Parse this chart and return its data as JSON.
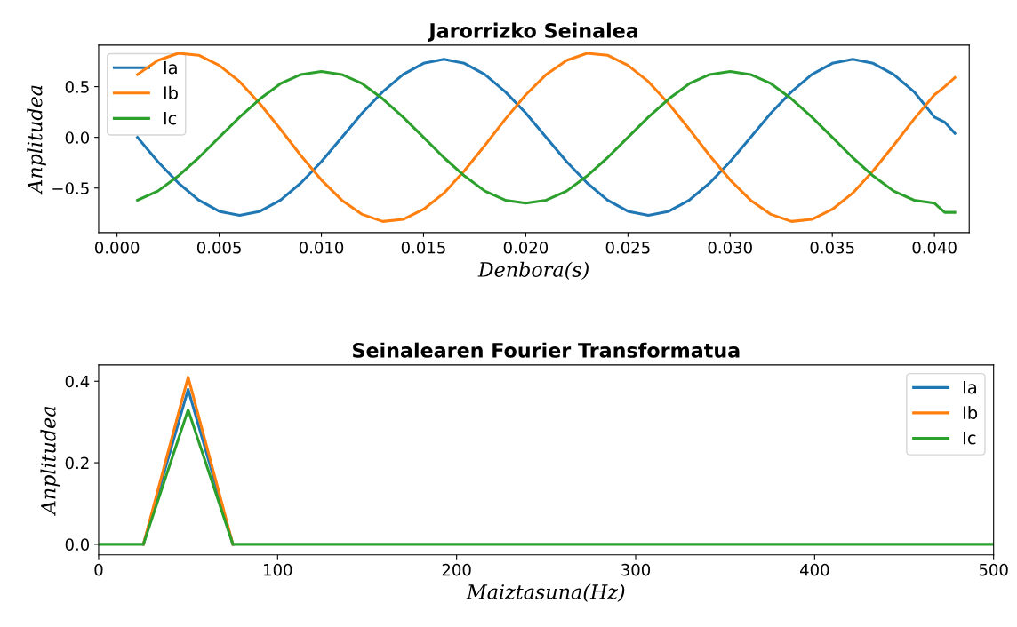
{
  "chart_data": [
    {
      "type": "line",
      "title": "Jarorrizko Seinalea",
      "xlabel": "Denbora(s)",
      "ylabel": "Anplitudea",
      "legend": "top left",
      "x": [
        0.001,
        0.002,
        0.003,
        0.004,
        0.005,
        0.006,
        0.007,
        0.008,
        0.009,
        0.01,
        0.011,
        0.012,
        0.013,
        0.014,
        0.015,
        0.016,
        0.017,
        0.018,
        0.019,
        0.02,
        0.021,
        0.022,
        0.023,
        0.024,
        0.025,
        0.026,
        0.027,
        0.028,
        0.029,
        0.03,
        0.031,
        0.032,
        0.033,
        0.034,
        0.035,
        0.036,
        0.037,
        0.038,
        0.039,
        0.04,
        0.0405,
        0.041
      ],
      "series": [
        {
          "name": "Ia",
          "color": "#1f77b4",
          "values": [
            0.0,
            -0.24,
            -0.45,
            -0.62,
            -0.73,
            -0.77,
            -0.73,
            -0.62,
            -0.45,
            -0.24,
            0.0,
            0.24,
            0.45,
            0.62,
            0.73,
            0.77,
            0.73,
            0.62,
            0.45,
            0.24,
            0.0,
            -0.24,
            -0.45,
            -0.62,
            -0.73,
            -0.77,
            -0.73,
            -0.62,
            -0.45,
            -0.24,
            0.0,
            0.24,
            0.45,
            0.62,
            0.73,
            0.77,
            0.73,
            0.62,
            0.45,
            0.2,
            0.15,
            0.04
          ]
        },
        {
          "name": "Ib",
          "color": "#ff7f0e",
          "values": [
            0.62,
            0.76,
            0.83,
            0.81,
            0.71,
            0.55,
            0.33,
            0.08,
            -0.18,
            -0.42,
            -0.62,
            -0.76,
            -0.83,
            -0.81,
            -0.71,
            -0.55,
            -0.33,
            -0.08,
            0.18,
            0.42,
            0.62,
            0.76,
            0.83,
            0.81,
            0.71,
            0.55,
            0.33,
            0.08,
            -0.18,
            -0.42,
            -0.62,
            -0.76,
            -0.83,
            -0.81,
            -0.71,
            -0.55,
            -0.33,
            -0.08,
            0.18,
            0.42,
            0.5,
            0.59
          ]
        },
        {
          "name": "Ic",
          "color": "#2ca02c",
          "values": [
            -0.62,
            -0.53,
            -0.38,
            -0.2,
            0.0,
            0.2,
            0.38,
            0.53,
            0.62,
            0.65,
            0.62,
            0.53,
            0.38,
            0.2,
            0.0,
            -0.2,
            -0.38,
            -0.53,
            -0.62,
            -0.65,
            -0.62,
            -0.53,
            -0.38,
            -0.2,
            0.0,
            0.2,
            0.38,
            0.53,
            0.62,
            0.65,
            0.62,
            0.53,
            0.38,
            0.2,
            0.0,
            -0.2,
            -0.38,
            -0.53,
            -0.62,
            -0.65,
            -0.74,
            -0.74
          ]
        }
      ],
      "xlim": [
        -0.0009,
        0.0417
      ],
      "ylim": [
        -0.94,
        0.91
      ],
      "xticks": [
        {
          "value": 0.0,
          "label": "0.000"
        },
        {
          "value": 0.005,
          "label": "0.005"
        },
        {
          "value": 0.01,
          "label": "0.010"
        },
        {
          "value": 0.015,
          "label": "0.015"
        },
        {
          "value": 0.02,
          "label": "0.020"
        },
        {
          "value": 0.025,
          "label": "0.025"
        },
        {
          "value": 0.03,
          "label": "0.030"
        },
        {
          "value": 0.035,
          "label": "0.035"
        },
        {
          "value": 0.04,
          "label": "0.040"
        }
      ],
      "yticks": [
        {
          "value": -0.5,
          "label": "−0.5"
        },
        {
          "value": 0.0,
          "label": "0.0"
        },
        {
          "value": 0.5,
          "label": "0.5"
        }
      ]
    },
    {
      "type": "line",
      "title": "Seinalearen Fourier Transformatua",
      "xlabel": "Maiztasuna(Hz)",
      "ylabel": "Anplitudea",
      "legend": "top right",
      "x": [
        0,
        25,
        50,
        75,
        100,
        125,
        150,
        175,
        200,
        225,
        250,
        275,
        300,
        325,
        350,
        375,
        400,
        425,
        450,
        475,
        500
      ],
      "series": [
        {
          "name": "Ia",
          "color": "#1f77b4",
          "values": [
            null,
            0.0,
            0.38,
            0.0,
            null,
            null,
            null,
            null,
            null,
            null,
            null,
            null,
            null,
            null,
            null,
            null,
            null,
            null,
            null,
            null,
            null
          ]
        },
        {
          "name": "Ib",
          "color": "#ff7f0e",
          "values": [
            null,
            0.0,
            0.41,
            0.0,
            null,
            null,
            null,
            null,
            null,
            null,
            null,
            null,
            null,
            null,
            null,
            null,
            null,
            null,
            null,
            null,
            null
          ]
        },
        {
          "name": "Ic",
          "color": "#2ca02c",
          "values": [
            0.0,
            0.0,
            0.33,
            0.0,
            0.0,
            0.0,
            0.0,
            0.0,
            0.0,
            0.0,
            0.0,
            0.0,
            0.0,
            0.0,
            0.0,
            0.0,
            0.0,
            0.0,
            0.0,
            0.0,
            0.0
          ]
        }
      ],
      "xlim": [
        0,
        500
      ],
      "ylim": [
        -0.026,
        0.44
      ],
      "xticks": [
        0,
        100,
        200,
        300,
        400,
        500
      ],
      "yticks": [
        {
          "value": 0.0,
          "label": "0.0"
        },
        {
          "value": 0.2,
          "label": "0.2"
        },
        {
          "value": 0.4,
          "label": "0.4"
        }
      ]
    }
  ]
}
